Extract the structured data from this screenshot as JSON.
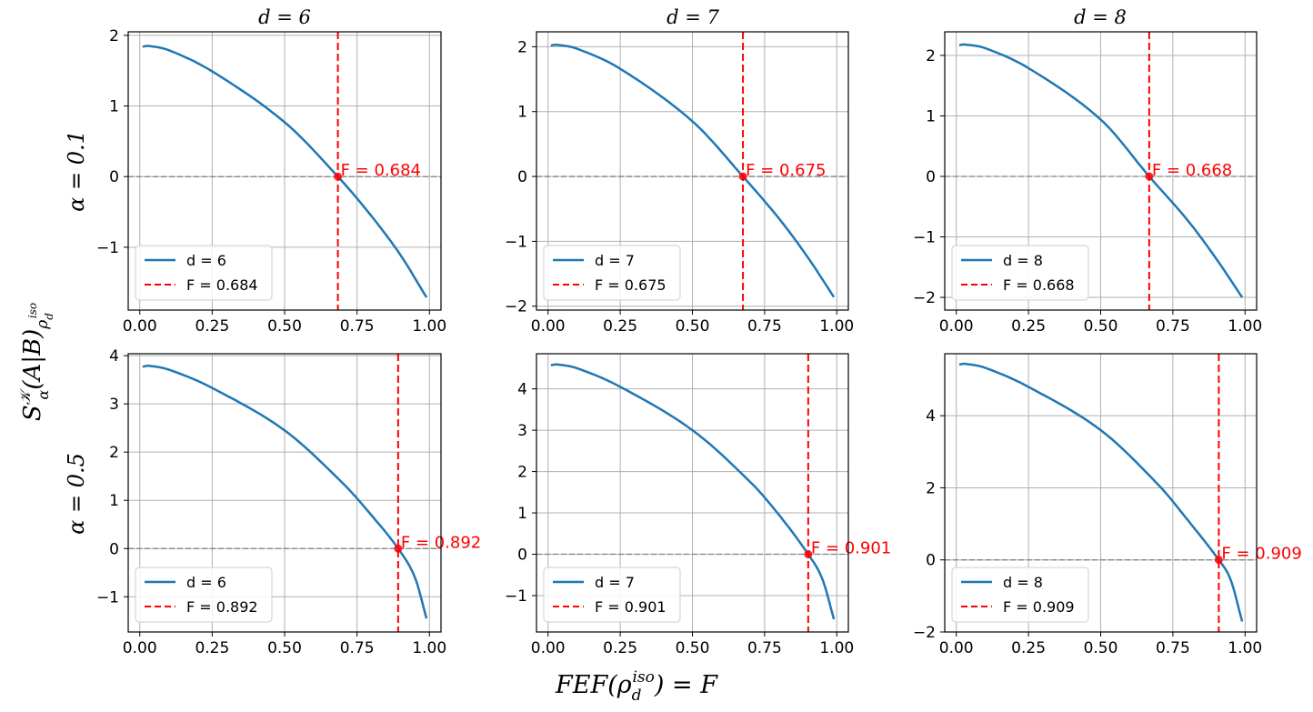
{
  "figure": {
    "xlabel": "FEF(ρ_d^iso) = F",
    "ylabel": "S_α^K(A|B)_ρ_d^iso",
    "xlabel_parts": {
      "main": "FEF(ρ",
      "sub": "d",
      "sup": "iso",
      "rest": ") = F"
    },
    "ylabel_parts": {
      "S": "S",
      "sup": "𝒦",
      "sub": "α",
      "mid": "(A|B)",
      "rho": "ρ",
      "rsub": "d",
      "rsup": "iso"
    },
    "col_titles": [
      "d = 6",
      "d = 7",
      "d = 8"
    ],
    "row_labels": [
      "α = 0.1",
      "α = 0.5"
    ]
  },
  "colors": {
    "curve": "#1f77b4",
    "threshold": "#ff0000",
    "zero_line": "#808080",
    "grid": "#b0b0b0"
  },
  "chart_data": [
    {
      "type": "line",
      "title": "d = 6",
      "d": 6,
      "alpha": 0.1,
      "x": [
        0.01,
        0.03,
        0.1,
        0.25,
        0.5,
        0.684,
        0.8,
        0.9,
        0.99
      ],
      "y": [
        1.84,
        1.85,
        1.79,
        1.49,
        0.77,
        0.0,
        -0.56,
        -1.11,
        -1.71
      ],
      "threshold": 0.684,
      "annotation": "F = 0.684",
      "legend": [
        "d = 6",
        "F = 0.684"
      ],
      "xlim": [
        -0.04,
        1.04
      ],
      "ylim": [
        -1.89,
        2.05
      ],
      "xticks": [
        "0.00",
        "0.25",
        "0.50",
        "0.75",
        "1.00"
      ],
      "yticks": [
        -1,
        0,
        1,
        2
      ],
      "ytick_labels": [
        "−1",
        "0",
        "1",
        "2"
      ]
    },
    {
      "type": "line",
      "title": "d = 7",
      "d": 7,
      "alpha": 0.1,
      "x": [
        0.01,
        0.03,
        0.1,
        0.25,
        0.5,
        0.675,
        0.8,
        0.9,
        0.99
      ],
      "y": [
        2.02,
        2.03,
        1.97,
        1.66,
        0.85,
        0.0,
        -0.65,
        -1.25,
        -1.86
      ],
      "threshold": 0.675,
      "annotation": "F = 0.675",
      "legend": [
        "d = 7",
        "F = 0.675"
      ],
      "xlim": [
        -0.04,
        1.04
      ],
      "ylim": [
        -2.06,
        2.23
      ],
      "xticks": [
        "0.00",
        "0.25",
        "0.50",
        "0.75",
        "1.00"
      ],
      "yticks": [
        -2,
        -1,
        0,
        1,
        2
      ],
      "ytick_labels": [
        "−2",
        "−1",
        "0",
        "1",
        "2"
      ]
    },
    {
      "type": "line",
      "title": "d = 8",
      "d": 8,
      "alpha": 0.1,
      "x": [
        0.01,
        0.03,
        0.1,
        0.25,
        0.5,
        0.668,
        0.8,
        0.9,
        0.99
      ],
      "y": [
        2.17,
        2.18,
        2.12,
        1.79,
        0.94,
        0.0,
        -0.72,
        -1.36,
        -2.0
      ],
      "threshold": 0.668,
      "annotation": "F = 0.668",
      "legend": [
        "d = 8",
        "F = 0.668"
      ],
      "xlim": [
        -0.04,
        1.04
      ],
      "ylim": [
        -2.21,
        2.39
      ],
      "xticks": [
        "0.00",
        "0.25",
        "0.50",
        "0.75",
        "1.00"
      ],
      "yticks": [
        -2,
        -1,
        0,
        1,
        2
      ],
      "ytick_labels": [
        "−2",
        "−1",
        "0",
        "1",
        "2"
      ]
    },
    {
      "type": "line",
      "title": "d = 6",
      "d": 6,
      "alpha": 0.5,
      "x": [
        0.01,
        0.03,
        0.1,
        0.25,
        0.5,
        0.7,
        0.8,
        0.892,
        0.95,
        0.99
      ],
      "y": [
        3.77,
        3.79,
        3.71,
        3.33,
        2.45,
        1.36,
        0.69,
        0.0,
        -0.6,
        -1.45
      ],
      "threshold": 0.892,
      "annotation": "F = 0.892",
      "legend": [
        "d = 6",
        "F = 0.892"
      ],
      "xlim": [
        -0.04,
        1.04
      ],
      "ylim": [
        -1.73,
        4.04
      ],
      "xticks": [
        "0.00",
        "0.25",
        "0.50",
        "0.75",
        "1.00"
      ],
      "yticks": [
        -1,
        0,
        1,
        2,
        3,
        4
      ],
      "ytick_labels": [
        "−1",
        "0",
        "1",
        "2",
        "3",
        "4"
      ]
    },
    {
      "type": "line",
      "title": "d = 7",
      "d": 7,
      "alpha": 0.5,
      "x": [
        0.01,
        0.03,
        0.1,
        0.25,
        0.5,
        0.7,
        0.8,
        0.901,
        0.95,
        0.99
      ],
      "y": [
        4.57,
        4.59,
        4.5,
        4.05,
        3.0,
        1.75,
        0.95,
        0.0,
        -0.6,
        -1.57
      ],
      "threshold": 0.901,
      "annotation": "F = 0.901",
      "legend": [
        "d = 7",
        "F = 0.901"
      ],
      "xlim": [
        -0.04,
        1.04
      ],
      "ylim": [
        -1.88,
        4.85
      ],
      "xticks": [
        "0.00",
        "0.25",
        "0.50",
        "0.75",
        "1.00"
      ],
      "yticks": [
        -1,
        0,
        1,
        2,
        3,
        4
      ],
      "ytick_labels": [
        "−1",
        "0",
        "1",
        "2",
        "3",
        "4"
      ]
    },
    {
      "type": "line",
      "title": "d = 8",
      "d": 8,
      "alpha": 0.5,
      "x": [
        0.01,
        0.03,
        0.1,
        0.25,
        0.5,
        0.7,
        0.8,
        0.909,
        0.95,
        0.99
      ],
      "y": [
        5.42,
        5.44,
        5.33,
        4.8,
        3.6,
        2.08,
        1.12,
        0.0,
        -0.55,
        -1.71
      ],
      "threshold": 0.909,
      "annotation": "F = 0.909",
      "legend": [
        "d = 8",
        "F = 0.909"
      ],
      "xlim": [
        -0.04,
        1.04
      ],
      "ylim": [
        -2.0,
        5.72
      ],
      "xticks": [
        "0.00",
        "0.25",
        "0.50",
        "0.75",
        "1.00"
      ],
      "yticks": [
        -2,
        0,
        2,
        4
      ],
      "ytick_labels": [
        "−2",
        "0",
        "2",
        "4"
      ]
    }
  ]
}
